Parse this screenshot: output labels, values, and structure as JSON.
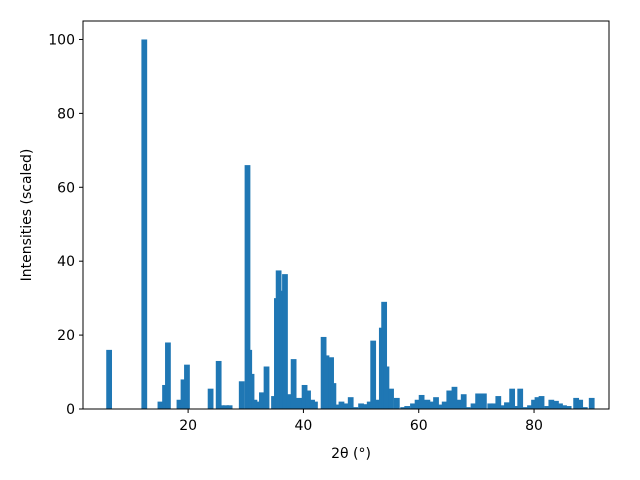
{
  "chart_data": {
    "type": "bar",
    "xlabel": "2θ (°)",
    "ylabel": "Intensities (scaled)",
    "x": [
      6.3,
      12.4,
      15.2,
      16.0,
      16.5,
      18.5,
      19.2,
      19.8,
      23.9,
      25.3,
      25.8,
      26.6,
      27.2,
      29.3,
      30.3,
      30.6,
      31.0,
      31.5,
      32.3,
      32.8,
      33.6,
      34.9,
      35.4,
      35.7,
      36.3,
      36.8,
      37.5,
      38.3,
      39.3,
      40.2,
      40.8,
      41.5,
      42.0,
      43.5,
      44.0,
      44.8,
      45.2,
      46.0,
      46.6,
      47.4,
      48.2,
      49.0,
      50.0,
      50.8,
      51.5,
      52.1,
      53.0,
      53.6,
      54.0,
      54.4,
      55.2,
      56.2,
      57.3,
      58.0,
      59.0,
      59.8,
      60.5,
      61.5,
      62.2,
      63.0,
      63.8,
      64.5,
      65.3,
      66.2,
      67.0,
      67.8,
      68.5,
      69.5,
      70.3,
      71.3,
      72.4,
      73.0,
      73.8,
      74.5,
      75.3,
      76.2,
      77.0,
      77.6,
      78.5,
      79.3,
      80.0,
      80.6,
      81.3,
      82.3,
      83.0,
      83.8,
      84.5,
      85.2,
      86.0,
      87.3,
      88.0,
      88.8,
      90.0
    ],
    "values": [
      16,
      100,
      2,
      6.5,
      18,
      2.5,
      8,
      12,
      5.5,
      13,
      1,
      1,
      1,
      7.5,
      66,
      16,
      9.5,
      2.5,
      2,
      4.5,
      11.5,
      3.5,
      30,
      37.5,
      32,
      36.5,
      4,
      13.5,
      3,
      6.5,
      5,
      2.5,
      2,
      19.5,
      14.5,
      14,
      7,
      1.2,
      2,
      1.5,
      3.2,
      0.5,
      1.5,
      1.3,
      2,
      18.5,
      2.5,
      22,
      29,
      11.5,
      5.5,
      3,
      0.5,
      0.8,
      1.5,
      2.5,
      3.8,
      2.5,
      2,
      3.2,
      1.2,
      2,
      5,
      6,
      2.5,
      4,
      0.5,
      1.5,
      4.2,
      4.2,
      1.5,
      1.5,
      3.5,
      1,
      1.8,
      5.5,
      0.8,
      5.5,
      0.5,
      1,
      2.5,
      3.2,
      3.5,
      0.8,
      2.5,
      2.2,
      1.5,
      1,
      0.8,
      3,
      2.5,
      0.5,
      3
    ],
    "color": "#1f77b4",
    "xlim": [
      1.77,
      93.0
    ],
    "xticks": [
      20,
      40,
      60,
      80
    ],
    "ylim": [
      0,
      105
    ],
    "yticks": [
      0,
      20,
      40,
      60,
      80,
      100
    ]
  }
}
